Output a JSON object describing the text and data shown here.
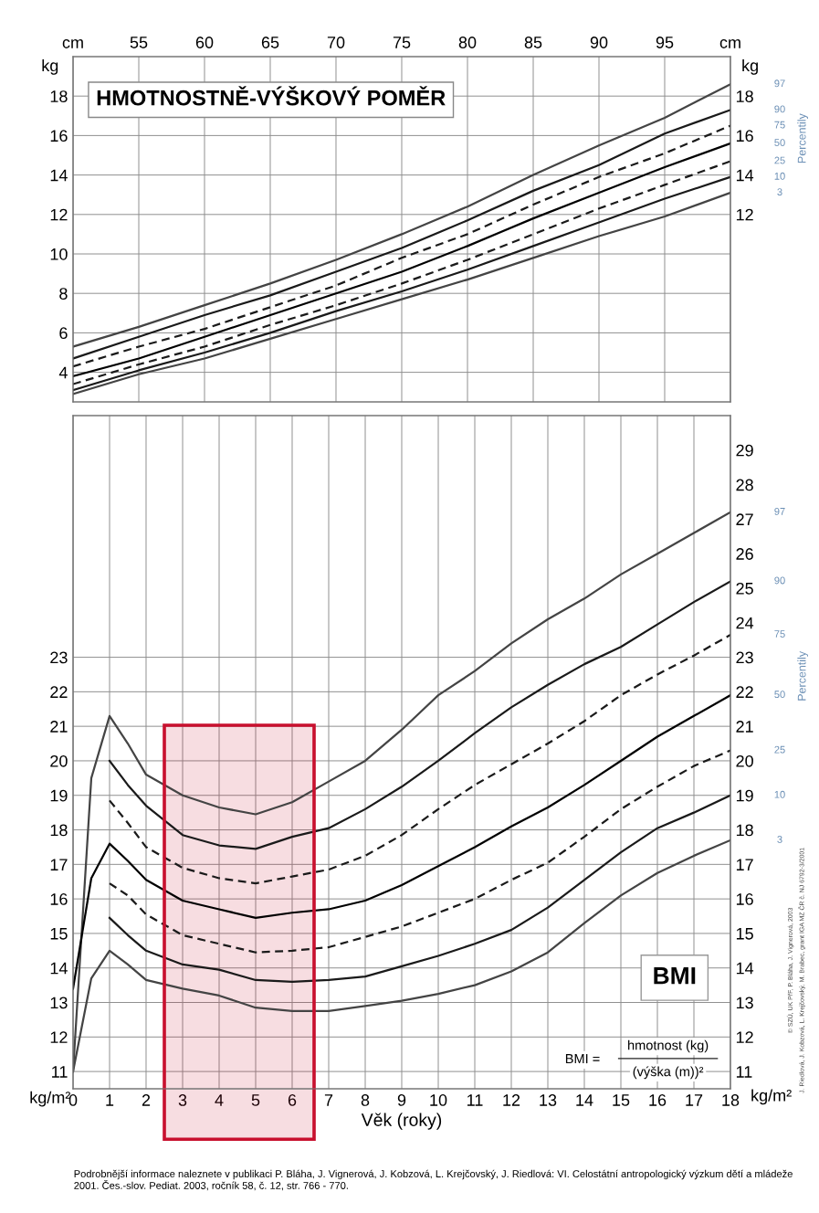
{
  "chart_data": [
    {
      "type": "line",
      "title": "HMOTNOSTNĚ-VÝŠKOVÝ POMĚR",
      "ylabel": "kg",
      "y2label": "kg",
      "legend_title": "Percentily",
      "xlim": [
        50,
        100
      ],
      "xticks": [
        {
          "value": 50,
          "label": "cm"
        },
        55,
        60,
        65,
        70,
        75,
        80,
        85,
        90,
        95,
        {
          "value": 100,
          "label": "cm"
        }
      ],
      "ylim": [
        2.5,
        20
      ],
      "yticks": [
        4,
        6,
        8,
        10,
        12,
        14,
        16,
        18
      ],
      "y2lim": [
        2.5,
        20
      ],
      "y2ticks": [
        12,
        14,
        16,
        18
      ],
      "grid": true,
      "x": [
        50,
        55,
        60,
        65,
        70,
        75,
        80,
        85,
        90,
        95,
        100
      ],
      "series": [
        {
          "name": "97",
          "color": "#444444",
          "line_style": "solid",
          "values": [
            5.3,
            6.3,
            7.4,
            8.5,
            9.7,
            11.0,
            12.4,
            14.0,
            15.5,
            16.9,
            18.6
          ]
        },
        {
          "name": "90",
          "color": "#1a1a1a",
          "line_style": "solid",
          "values": [
            4.7,
            5.8,
            6.9,
            7.9,
            9.1,
            10.3,
            11.7,
            13.2,
            14.5,
            16.1,
            17.3
          ]
        },
        {
          "name": "75",
          "color": "#1a1a1a",
          "line_style": "dashed",
          "values": [
            4.3,
            5.3,
            6.2,
            7.3,
            8.4,
            9.8,
            11.0,
            12.5,
            13.9,
            15.1,
            16.5
          ]
        },
        {
          "name": "50",
          "color": "#000000",
          "line_style": "solid",
          "values": [
            3.8,
            4.7,
            5.8,
            6.9,
            8.0,
            9.1,
            10.4,
            11.8,
            13.1,
            14.4,
            15.6
          ]
        },
        {
          "name": "25",
          "color": "#1a1a1a",
          "line_style": "dashed",
          "values": [
            3.4,
            4.4,
            5.3,
            6.4,
            7.4,
            8.5,
            9.7,
            11.0,
            12.3,
            13.5,
            14.7
          ]
        },
        {
          "name": "10",
          "color": "#1a1a1a",
          "line_style": "solid",
          "values": [
            3.1,
            4.1,
            5.0,
            6.0,
            7.1,
            8.1,
            9.2,
            10.4,
            11.6,
            12.8,
            13.9
          ]
        },
        {
          "name": "3",
          "color": "#444444",
          "line_style": "solid",
          "values": [
            2.9,
            3.9,
            4.7,
            5.7,
            6.7,
            7.7,
            8.7,
            9.8,
            10.9,
            11.9,
            13.1
          ]
        }
      ]
    },
    {
      "type": "line",
      "xlabel": "Věk (roky)",
      "ylabel": "kg/m²",
      "y2label": "kg/m²",
      "legend_title": "Percentily",
      "xlim": [
        0,
        18
      ],
      "xticks": [
        0,
        1,
        2,
        3,
        4,
        5,
        6,
        7,
        8,
        9,
        10,
        11,
        12,
        13,
        14,
        15,
        16,
        17,
        18
      ],
      "ylim": [
        10.5,
        30
      ],
      "yticks": [
        11,
        12,
        13,
        14,
        15,
        16,
        17,
        18,
        19,
        20,
        21,
        22,
        23
      ],
      "y2lim": [
        10.5,
        30
      ],
      "y2ticks": [
        11,
        12,
        13,
        14,
        15,
        16,
        17,
        18,
        19,
        20,
        21,
        22,
        23,
        24,
        25,
        26,
        27,
        28,
        29
      ],
      "grid": true,
      "bands": [
        {
          "axis": "x",
          "from": 2.5,
          "to": 6.6,
          "color": "#c8102e"
        }
      ],
      "annotations": [
        "BMI",
        "BMI =",
        "hmotnost (kg)",
        "(výška (m))²",
        "Podrobnější informace naleznete v publikaci P. Bláha, J. Vignerová, J. Kobzová, L. Krejčovský, J. Riedlová: VI. Celostátní antropologický výzkum dětí a mládeže 2001. Čes.-slov. Pediat. 2003, ročník 58, č. 12, str. 766 - 770.",
        "© SZÚ, UK PřF, P. Bláha, J. Vignerová, 2003",
        "J. Riedlová, J. Kobzová, L. Krejčovský, M. Brabec, grant IGA MZ ČR č. NJ 6792-3/2001"
      ],
      "series": [
        {
          "name": "97",
          "color": "#444444",
          "line_style": "solid",
          "x": [
            0,
            0.5,
            1,
            1.5,
            2,
            3,
            4,
            5,
            6,
            7,
            8,
            9,
            10,
            11,
            12,
            13,
            14,
            15,
            16,
            17,
            18
          ],
          "values": [
            11.0,
            19.5,
            21.3,
            20.5,
            19.6,
            19.0,
            18.65,
            18.45,
            18.8,
            19.4,
            20.0,
            20.9,
            21.9,
            22.6,
            23.4,
            24.1,
            24.7,
            25.4,
            26.0,
            26.6,
            27.2
          ]
        },
        {
          "name": "90",
          "color": "#1a1a1a",
          "line_style": "solid",
          "x": [
            1,
            1.5,
            2,
            3,
            4,
            5,
            6,
            7,
            8,
            9,
            10,
            11,
            12,
            13,
            14,
            15,
            16,
            17,
            18
          ],
          "values": [
            20.0,
            19.3,
            18.7,
            17.85,
            17.55,
            17.45,
            17.8,
            18.05,
            18.6,
            19.25,
            20.0,
            20.8,
            21.55,
            22.2,
            22.8,
            23.3,
            23.95,
            24.6,
            25.2
          ]
        },
        {
          "name": "75",
          "color": "#1a1a1a",
          "line_style": "dashed",
          "x": [
            1,
            1.5,
            2,
            3,
            4,
            5,
            6,
            7,
            8,
            9,
            10,
            11,
            12,
            13,
            14,
            15,
            16,
            17,
            18
          ],
          "values": [
            18.85,
            18.2,
            17.5,
            16.9,
            16.6,
            16.45,
            16.65,
            16.85,
            17.25,
            17.85,
            18.6,
            19.3,
            19.9,
            20.5,
            21.15,
            21.9,
            22.5,
            23.05,
            23.65
          ]
        },
        {
          "name": "50",
          "color": "#000000",
          "line_style": "solid",
          "x": [
            0,
            0.5,
            1,
            1.5,
            2,
            3,
            4,
            5,
            6,
            7,
            8,
            9,
            10,
            11,
            12,
            13,
            14,
            15,
            16,
            17,
            18
          ],
          "values": [
            13.4,
            16.6,
            17.6,
            17.1,
            16.55,
            15.95,
            15.7,
            15.45,
            15.6,
            15.7,
            15.95,
            16.4,
            16.95,
            17.5,
            18.1,
            18.65,
            19.3,
            20.0,
            20.7,
            21.3,
            21.9
          ]
        },
        {
          "name": "25",
          "color": "#1a1a1a",
          "line_style": "dashed",
          "x": [
            1,
            1.5,
            2,
            3,
            4,
            5,
            6,
            7,
            8,
            9,
            10,
            11,
            12,
            13,
            14,
            15,
            16,
            17,
            18
          ],
          "values": [
            16.45,
            16.1,
            15.55,
            14.95,
            14.7,
            14.45,
            14.5,
            14.6,
            14.9,
            15.2,
            15.6,
            16.0,
            16.55,
            17.05,
            17.8,
            18.6,
            19.25,
            19.85,
            20.3
          ]
        },
        {
          "name": "10",
          "color": "#1a1a1a",
          "line_style": "solid",
          "x": [
            1,
            1.5,
            2,
            3,
            4,
            5,
            6,
            7,
            8,
            9,
            10,
            11,
            12,
            13,
            14,
            15,
            16,
            17,
            18
          ],
          "values": [
            15.45,
            14.95,
            14.5,
            14.1,
            13.95,
            13.65,
            13.6,
            13.65,
            13.75,
            14.05,
            14.35,
            14.7,
            15.1,
            15.75,
            16.55,
            17.35,
            18.05,
            18.5,
            19.0
          ]
        },
        {
          "name": "3",
          "color": "#444444",
          "line_style": "solid",
          "x": [
            0,
            0.5,
            1,
            1.5,
            2,
            3,
            4,
            5,
            6,
            7,
            8,
            9,
            10,
            11,
            12,
            13,
            14,
            15,
            16,
            17,
            18
          ],
          "values": [
            11.0,
            13.7,
            14.5,
            14.1,
            13.65,
            13.4,
            13.2,
            12.85,
            12.75,
            12.75,
            12.9,
            13.05,
            13.25,
            13.5,
            13.9,
            14.45,
            15.3,
            16.1,
            16.75,
            17.25,
            17.7
          ]
        }
      ]
    }
  ]
}
